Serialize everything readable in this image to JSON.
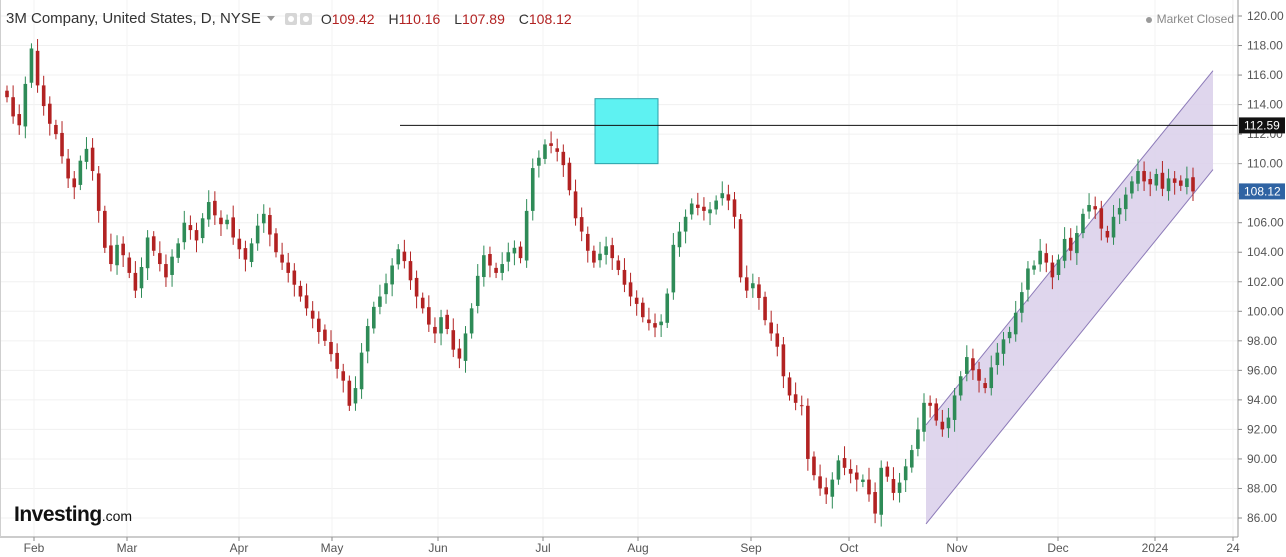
{
  "header": {
    "title": "3M Company, United States, D, NYSE",
    "o_label": "O",
    "o_value": "109.42",
    "h_label": "H",
    "h_value": "110.16",
    "l_label": "L",
    "l_value": "107.89",
    "c_label": "C",
    "c_value": "108.12"
  },
  "status": "Market Closed",
  "logo": {
    "main": "Investing",
    "suffix": ".com"
  },
  "colors": {
    "up": "#2e8b57",
    "down": "#b22222",
    "channel_fill": "#d9cfea",
    "channel_line": "#8c7ab8",
    "highlight_fill": "#5ef2f2",
    "price_badge": "#2f63a3",
    "level_badge": "#111111"
  },
  "chart_data": {
    "type": "candlestick",
    "ylim": [
      85,
      121
    ],
    "y_ticks": [
      "120.00",
      "118.00",
      "116.00",
      "114.00",
      "112.00",
      "110.00",
      "108.00",
      "106.00",
      "104.00",
      "102.00",
      "100.00",
      "98.00",
      "96.00",
      "94.00",
      "92.00",
      "90.00",
      "88.00",
      "86.00"
    ],
    "x_ticks": [
      "Feb",
      "Mar",
      "Apr",
      "May",
      "Jun",
      "Jul",
      "Aug",
      "Sep",
      "Oct",
      "Nov",
      "Dec",
      "2024",
      "24"
    ],
    "horizontal_level": {
      "value": 112.59,
      "label": "112.59"
    },
    "last_price": {
      "value": 108.12,
      "label": "108.12"
    },
    "closes": [
      114.5,
      113.2,
      112.6,
      115.4,
      117.8,
      115.3,
      113.9,
      112.7,
      112.0,
      110.5,
      109.0,
      108.4,
      110.2,
      111.0,
      109.5,
      106.8,
      104.3,
      103.2,
      104.5,
      103.8,
      102.6,
      101.4,
      103.0,
      105.0,
      104.1,
      103.2,
      102.3,
      103.7,
      104.6,
      106.0,
      105.5,
      104.8,
      106.3,
      107.4,
      106.5,
      105.9,
      106.2,
      105.0,
      104.2,
      103.5,
      104.6,
      105.8,
      106.6,
      105.2,
      104.0,
      103.3,
      102.6,
      101.8,
      101.0,
      100.2,
      99.5,
      98.6,
      98.0,
      97.1,
      96.1,
      95.3,
      93.6,
      94.8,
      97.2,
      99.0,
      100.3,
      101.0,
      101.9,
      103.1,
      104.2,
      103.4,
      102.1,
      101.0,
      100.2,
      99.1,
      98.5,
      99.6,
      98.8,
      97.4,
      96.8,
      98.5,
      100.2,
      102.4,
      103.8,
      103.1,
      102.6,
      103.2,
      104.0,
      104.3,
      103.6,
      106.8,
      109.7,
      110.4,
      111.3,
      111.2,
      110.8,
      109.9,
      108.2,
      106.3,
      105.4,
      104.1,
      103.3,
      103.9,
      104.4,
      103.6,
      102.8,
      101.8,
      101.0,
      100.5,
      99.6,
      99.2,
      98.9,
      99.3,
      101.2,
      104.5,
      105.4,
      106.4,
      107.3,
      107.0,
      106.8,
      106.9,
      107.5,
      108.0,
      107.5,
      106.4,
      102.3,
      101.4,
      101.9,
      100.9,
      99.4,
      98.5,
      97.6,
      95.6,
      94.3,
      93.8,
      93.6,
      90.0,
      88.9,
      88.0,
      87.6,
      88.6,
      89.9,
      89.4,
      89.0,
      88.6,
      88.6,
      87.6,
      86.3,
      89.4,
      88.8,
      87.7,
      88.4,
      89.5,
      90.6,
      92.0,
      93.8,
      93.6,
      92.6,
      92.0,
      92.8,
      94.3,
      95.6,
      96.9,
      96.0,
      95.3,
      94.8,
      96.2,
      97.2,
      98.1,
      98.6,
      99.9,
      101.3,
      102.9,
      103.1,
      104.1,
      103.3,
      102.3,
      103.5,
      104.9,
      104.1,
      105.3,
      106.6,
      107.2,
      106.9,
      105.6,
      105.0,
      106.4,
      107.0,
      107.9,
      108.8,
      109.5,
      108.8,
      108.6,
      109.3,
      108.3,
      109.0,
      108.7,
      108.5,
      109.0,
      108.12
    ]
  }
}
